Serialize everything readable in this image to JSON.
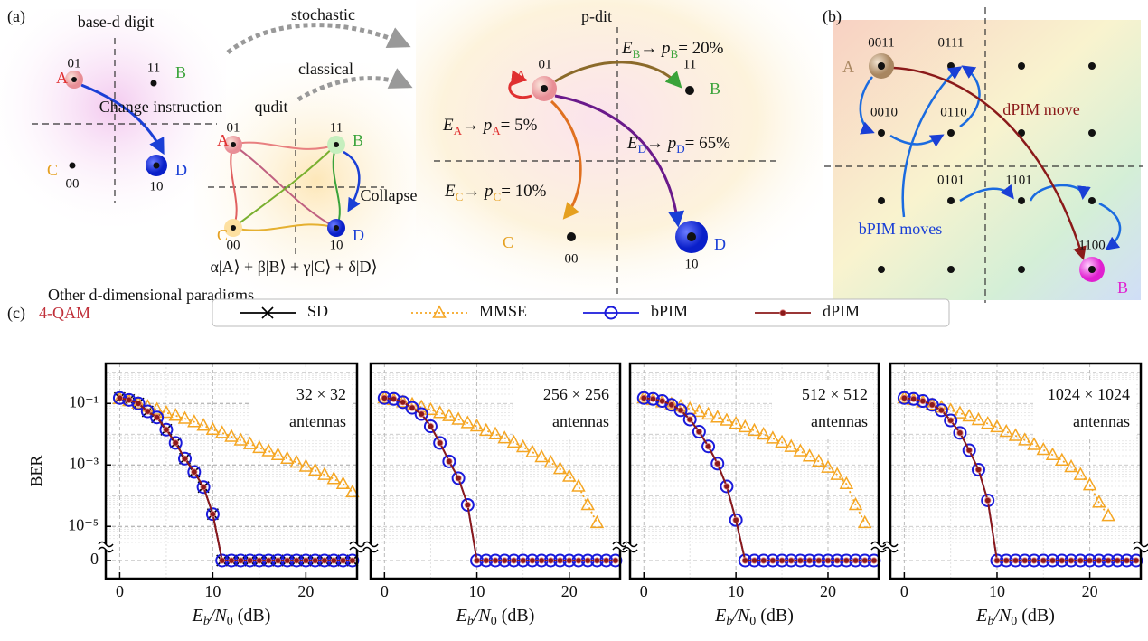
{
  "panel_labels": [
    "(a)",
    "(b)",
    "(c)"
  ],
  "panel_a": {
    "base_digit": {
      "title": "base-d digit",
      "nodes": [
        {
          "label": "A",
          "code": "01"
        },
        {
          "label": "B",
          "code": "11"
        },
        {
          "label": "C",
          "code": "00"
        },
        {
          "label": "D",
          "code": "10"
        }
      ],
      "arrow_label": "Change instruction"
    },
    "arrows": [
      "stochastic",
      "classical"
    ],
    "qudit": {
      "title": "qudit",
      "nodes": [
        {
          "label": "A",
          "code": "01"
        },
        {
          "label": "B",
          "code": "11"
        },
        {
          "label": "C",
          "code": "00"
        },
        {
          "label": "D",
          "code": "10"
        }
      ],
      "arrow_label": "Collapse",
      "state": "α|A⟩ + β|B⟩ + γ|C⟩ + δ|D⟩"
    },
    "caption": "Other d-dimensional paradigms",
    "pdit": {
      "title": "p-dit",
      "nodes": [
        {
          "label": "A",
          "code": "01"
        },
        {
          "label": "B",
          "code": "11"
        },
        {
          "label": "C",
          "code": "00"
        },
        {
          "label": "D",
          "code": "10"
        }
      ],
      "transitions": [
        {
          "energy": "E",
          "state": "B",
          "arrow": "→ p",
          "prob": "= 20%"
        },
        {
          "energy": "E",
          "state": "A",
          "arrow": "→ p",
          "prob": "= 5%"
        },
        {
          "energy": "E",
          "state": "D",
          "arrow": "→ p",
          "prob": "= 65%"
        },
        {
          "energy": "E",
          "state": "C",
          "arrow": "→ p",
          "prob": "= 10%"
        }
      ]
    }
  },
  "panel_b": {
    "codes": [
      "0011",
      "0111",
      "0010",
      "0110",
      "0101",
      "1101",
      "1100"
    ],
    "nodes": [
      "A",
      "B"
    ],
    "labels": [
      "dPIM move",
      "bPIM moves"
    ]
  },
  "panel_c_title": "4-QAM",
  "chart_data": [
    {
      "type": "line",
      "ylabel": "BER",
      "xlabel": [
        "E",
        "b",
        "/N",
        "0",
        " (dB)"
      ],
      "annotation": [
        "32 × 32",
        "antennas"
      ],
      "x": [
        0,
        1,
        2,
        3,
        4,
        5,
        6,
        7,
        8,
        9,
        10,
        11,
        12,
        13,
        14,
        15,
        16,
        17,
        18,
        19,
        20,
        21,
        22,
        23,
        24,
        25
      ],
      "xlim": [
        -1.5,
        25.5
      ],
      "xticks": [
        0,
        10,
        20
      ],
      "ylim": [
        3e-06,
        2
      ],
      "y_scale": "log",
      "axis_break": true,
      "grid": true,
      "legend": "top",
      "yticks": [
        {
          "value": 0.1,
          "label": "10⁻¹"
        },
        {
          "value": 0.001,
          "label": "10⁻³"
        },
        {
          "value": 1e-05,
          "label": "10⁻⁵"
        },
        0
      ],
      "series": [
        {
          "name": "SD",
          "color": "#000000",
          "marker": "x",
          "linestyle": "solid",
          "values": [
            0.15,
            0.13,
            0.1,
            0.055,
            0.035,
            0.014,
            0.0052,
            0.0016,
            0.00059,
            0.00019,
            2.5e-05,
            0,
            0,
            0,
            0,
            0,
            0,
            0,
            0,
            0,
            0,
            0,
            0,
            0,
            0,
            0
          ]
        },
        {
          "name": "MMSE",
          "color": "#f5a623",
          "marker": "triangle",
          "linestyle": "dotted",
          "values": [
            0.14,
            0.12,
            0.1,
            0.079,
            0.063,
            0.05,
            0.04,
            0.032,
            0.025,
            0.019,
            0.014,
            0.011,
            0.0083,
            0.0063,
            0.0048,
            0.0036,
            0.0028,
            0.0021,
            0.0016,
            0.0012,
            0.00089,
            0.00066,
            0.00048,
            0.00035,
            0.00024,
            0.00013
          ]
        },
        {
          "name": "bPIM",
          "color": "#1a1adb",
          "marker": "circle",
          "linestyle": "solid",
          "values": [
            0.15,
            0.13,
            0.1,
            0.055,
            0.035,
            0.014,
            0.0052,
            0.0016,
            0.00059,
            0.00019,
            2.5e-05,
            0,
            0,
            0,
            0,
            0,
            0,
            0,
            0,
            0,
            0,
            0,
            0,
            0,
            0,
            0
          ]
        },
        {
          "name": "dPIM",
          "color": "#8b1a1a",
          "marker": "dot",
          "linestyle": "solid",
          "values": [
            0.15,
            0.13,
            0.1,
            0.055,
            0.035,
            0.014,
            0.0052,
            0.0016,
            0.00059,
            0.00019,
            2.5e-05,
            0,
            0,
            0,
            0,
            0,
            0,
            0,
            0,
            0,
            0,
            0,
            0,
            0,
            0,
            0
          ]
        }
      ]
    },
    {
      "type": "line",
      "xlabel": [
        "E",
        "b",
        "/N",
        "0",
        " (dB)"
      ],
      "annotation": [
        "256 × 256",
        "antennas"
      ],
      "x": [
        0,
        1,
        2,
        3,
        4,
        5,
        6,
        7,
        8,
        9,
        10,
        11,
        12,
        13,
        14,
        15,
        16,
        17,
        18,
        19,
        20,
        21,
        22,
        23,
        24,
        25
      ],
      "xlim": [
        -1.5,
        25.5
      ],
      "xticks": [
        0,
        10,
        20
      ],
      "ylim": [
        3e-06,
        2
      ],
      "y_scale": "log",
      "axis_break": true,
      "grid": true,
      "series": [
        {
          "name": "MMSE",
          "color": "#f5a623",
          "marker": "triangle",
          "linestyle": "dotted",
          "values": [
            0.15,
            0.13,
            0.11,
            0.093,
            0.076,
            0.062,
            0.049,
            0.039,
            0.03,
            0.023,
            0.018,
            0.013,
            0.01,
            0.0074,
            0.0054,
            0.0038,
            0.0026,
            0.0018,
            0.0012,
            0.00074,
            0.00042,
            0.0002,
            5e-05,
            1.3e-05,
            null,
            null
          ]
        },
        {
          "name": "bPIM",
          "color": "#1a1adb",
          "marker": "circle",
          "linestyle": "solid",
          "values": [
            0.15,
            0.14,
            0.11,
            0.072,
            0.045,
            0.018,
            0.0052,
            0.0013,
            0.00037,
            5e-05,
            0,
            0,
            0,
            0,
            0,
            0,
            0,
            0,
            0,
            0,
            0,
            0,
            0,
            0,
            0,
            0
          ]
        },
        {
          "name": "dPIM",
          "color": "#8b1a1a",
          "marker": "dot",
          "linestyle": "solid",
          "values": [
            0.15,
            0.14,
            0.11,
            0.072,
            0.045,
            0.018,
            0.0052,
            0.0013,
            0.00037,
            5e-05,
            0,
            0,
            0,
            0,
            0,
            0,
            0,
            0,
            0,
            0,
            0,
            0,
            0,
            0,
            0,
            0
          ]
        }
      ]
    },
    {
      "type": "line",
      "xlabel": [
        "E",
        "b",
        "/N",
        "0",
        " (dB)"
      ],
      "annotation": [
        "512 × 512",
        "antennas"
      ],
      "x": [
        0,
        1,
        2,
        3,
        4,
        5,
        6,
        7,
        8,
        9,
        10,
        11,
        12,
        13,
        14,
        15,
        16,
        17,
        18,
        19,
        20,
        21,
        22,
        23,
        24,
        25
      ],
      "xlim": [
        -1.5,
        25.5
      ],
      "xticks": [
        0,
        10,
        20
      ],
      "ylim": [
        3e-06,
        2
      ],
      "y_scale": "log",
      "axis_break": true,
      "grid": true,
      "series": [
        {
          "name": "MMSE",
          "color": "#f5a623",
          "marker": "triangle",
          "linestyle": "dotted",
          "values": [
            0.15,
            0.13,
            0.11,
            0.095,
            0.08,
            0.066,
            0.054,
            0.044,
            0.035,
            0.028,
            0.022,
            0.017,
            0.013,
            0.0098,
            0.0073,
            0.0054,
            0.0039,
            0.0028,
            0.0019,
            0.0013,
            0.00082,
            0.00048,
            0.00024,
            5e-05,
            1.3e-05,
            null
          ]
        },
        {
          "name": "bPIM",
          "color": "#1a1adb",
          "marker": "circle",
          "linestyle": "solid",
          "values": [
            0.15,
            0.14,
            0.12,
            0.09,
            0.06,
            0.03,
            0.012,
            0.004,
            0.0011,
            0.0002,
            1.6e-05,
            0,
            0,
            0,
            0,
            0,
            0,
            0,
            0,
            0,
            0,
            0,
            0,
            0,
            0,
            0
          ]
        },
        {
          "name": "dPIM",
          "color": "#8b1a1a",
          "marker": "dot",
          "linestyle": "solid",
          "values": [
            0.15,
            0.14,
            0.12,
            0.09,
            0.06,
            0.03,
            0.012,
            0.004,
            0.0011,
            0.0002,
            1.6e-05,
            0,
            0,
            0,
            0,
            0,
            0,
            0,
            0,
            0,
            0,
            0,
            0,
            0,
            0,
            0
          ]
        }
      ]
    },
    {
      "type": "line",
      "xlabel": [
        "E",
        "b",
        "/N",
        "0",
        " (dB)"
      ],
      "annotation": [
        "1024 × 1024",
        "antennas"
      ],
      "x": [
        0,
        1,
        2,
        3,
        4,
        5,
        6,
        7,
        8,
        9,
        10,
        11,
        12,
        13,
        14,
        15,
        16,
        17,
        18,
        19,
        20,
        21,
        22,
        23,
        24,
        25
      ],
      "xlim": [
        -1.5,
        25.5
      ],
      "xticks": [
        0,
        10,
        20
      ],
      "ylim": [
        3e-06,
        2
      ],
      "y_scale": "log",
      "axis_break": true,
      "grid": true,
      "series": [
        {
          "name": "MMSE",
          "color": "#f5a623",
          "marker": "triangle",
          "linestyle": "dotted",
          "values": [
            0.15,
            0.13,
            0.11,
            0.09,
            0.074,
            0.06,
            0.048,
            0.038,
            0.029,
            0.022,
            0.017,
            0.012,
            0.0089,
            0.0064,
            0.0045,
            0.0031,
            0.0021,
            0.0014,
            0.00086,
            0.00048,
            0.00022,
            6e-05,
            2.2e-05,
            null,
            null,
            null
          ]
        },
        {
          "name": "bPIM",
          "color": "#1a1adb",
          "marker": "circle",
          "linestyle": "solid",
          "values": [
            0.15,
            0.14,
            0.12,
            0.09,
            0.06,
            0.028,
            0.011,
            0.003,
            0.0007,
            7e-05,
            0,
            0,
            0,
            0,
            0,
            0,
            0,
            0,
            0,
            0,
            0,
            0,
            0,
            0,
            0,
            0
          ]
        },
        {
          "name": "dPIM",
          "color": "#8b1a1a",
          "marker": "dot",
          "linestyle": "solid",
          "values": [
            0.15,
            0.14,
            0.12,
            0.09,
            0.06,
            0.028,
            0.011,
            0.003,
            0.0007,
            7e-05,
            0,
            0,
            0,
            0,
            0,
            0,
            0,
            0,
            0,
            0,
            0,
            0,
            0,
            0,
            0,
            0
          ]
        }
      ]
    }
  ]
}
